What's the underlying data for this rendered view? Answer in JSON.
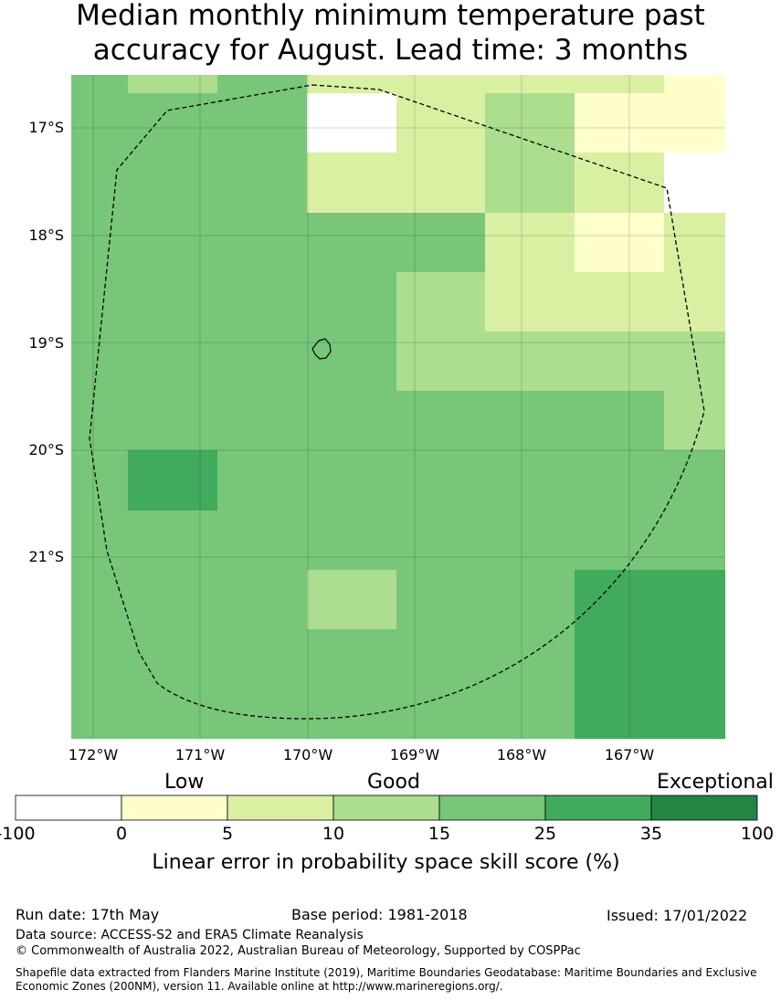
{
  "title_line1": "Median monthly minimum temperature past",
  "title_line2": "accuracy for August. Lead time: 3 months",
  "map": {
    "lat_ticks": [
      "17°S",
      "18°S",
      "19°S",
      "20°S",
      "21°S"
    ],
    "lon_ticks": [
      "172°W",
      "171°W",
      "170°W",
      "169°W",
      "168°W",
      "167°W"
    ],
    "colors": {
      "negative": "#ffffff",
      "c0_5": "#ffffcc",
      "c5_10": "#d9f0a3",
      "c10_15": "#addd8e",
      "c15_25": "#78c679",
      "c25_35": "#41ab5d",
      "c35_100": "#238443"
    }
  },
  "colorbar": {
    "words": [
      "Low",
      "Good",
      "Exceptional"
    ],
    "ticks": [
      "-100",
      "0",
      "5",
      "10",
      "15",
      "25",
      "35",
      "100"
    ],
    "label": "Linear error in probability space skill score (%)"
  },
  "footer": {
    "run_date": "Run date: 17th May",
    "base_period": "Base period: 1981-2018",
    "issued": "Issued: 17/01/2022",
    "data_source": "Data source: ACCESS-S2 and ERA5 Climate Reanalysis",
    "copyright": "© Commonwealth of Australia 2022, Australian Bureau of Meteorology, Supported by COSPPac",
    "shapefile": "Shapefile data extracted from Flanders Marine Institute (2019), Maritime Boundaries Geodatabase: Maritime Boundaries and Exclusive Economic Zones (200NM), version 11. Available online at http://www.marineregions.org/."
  }
}
